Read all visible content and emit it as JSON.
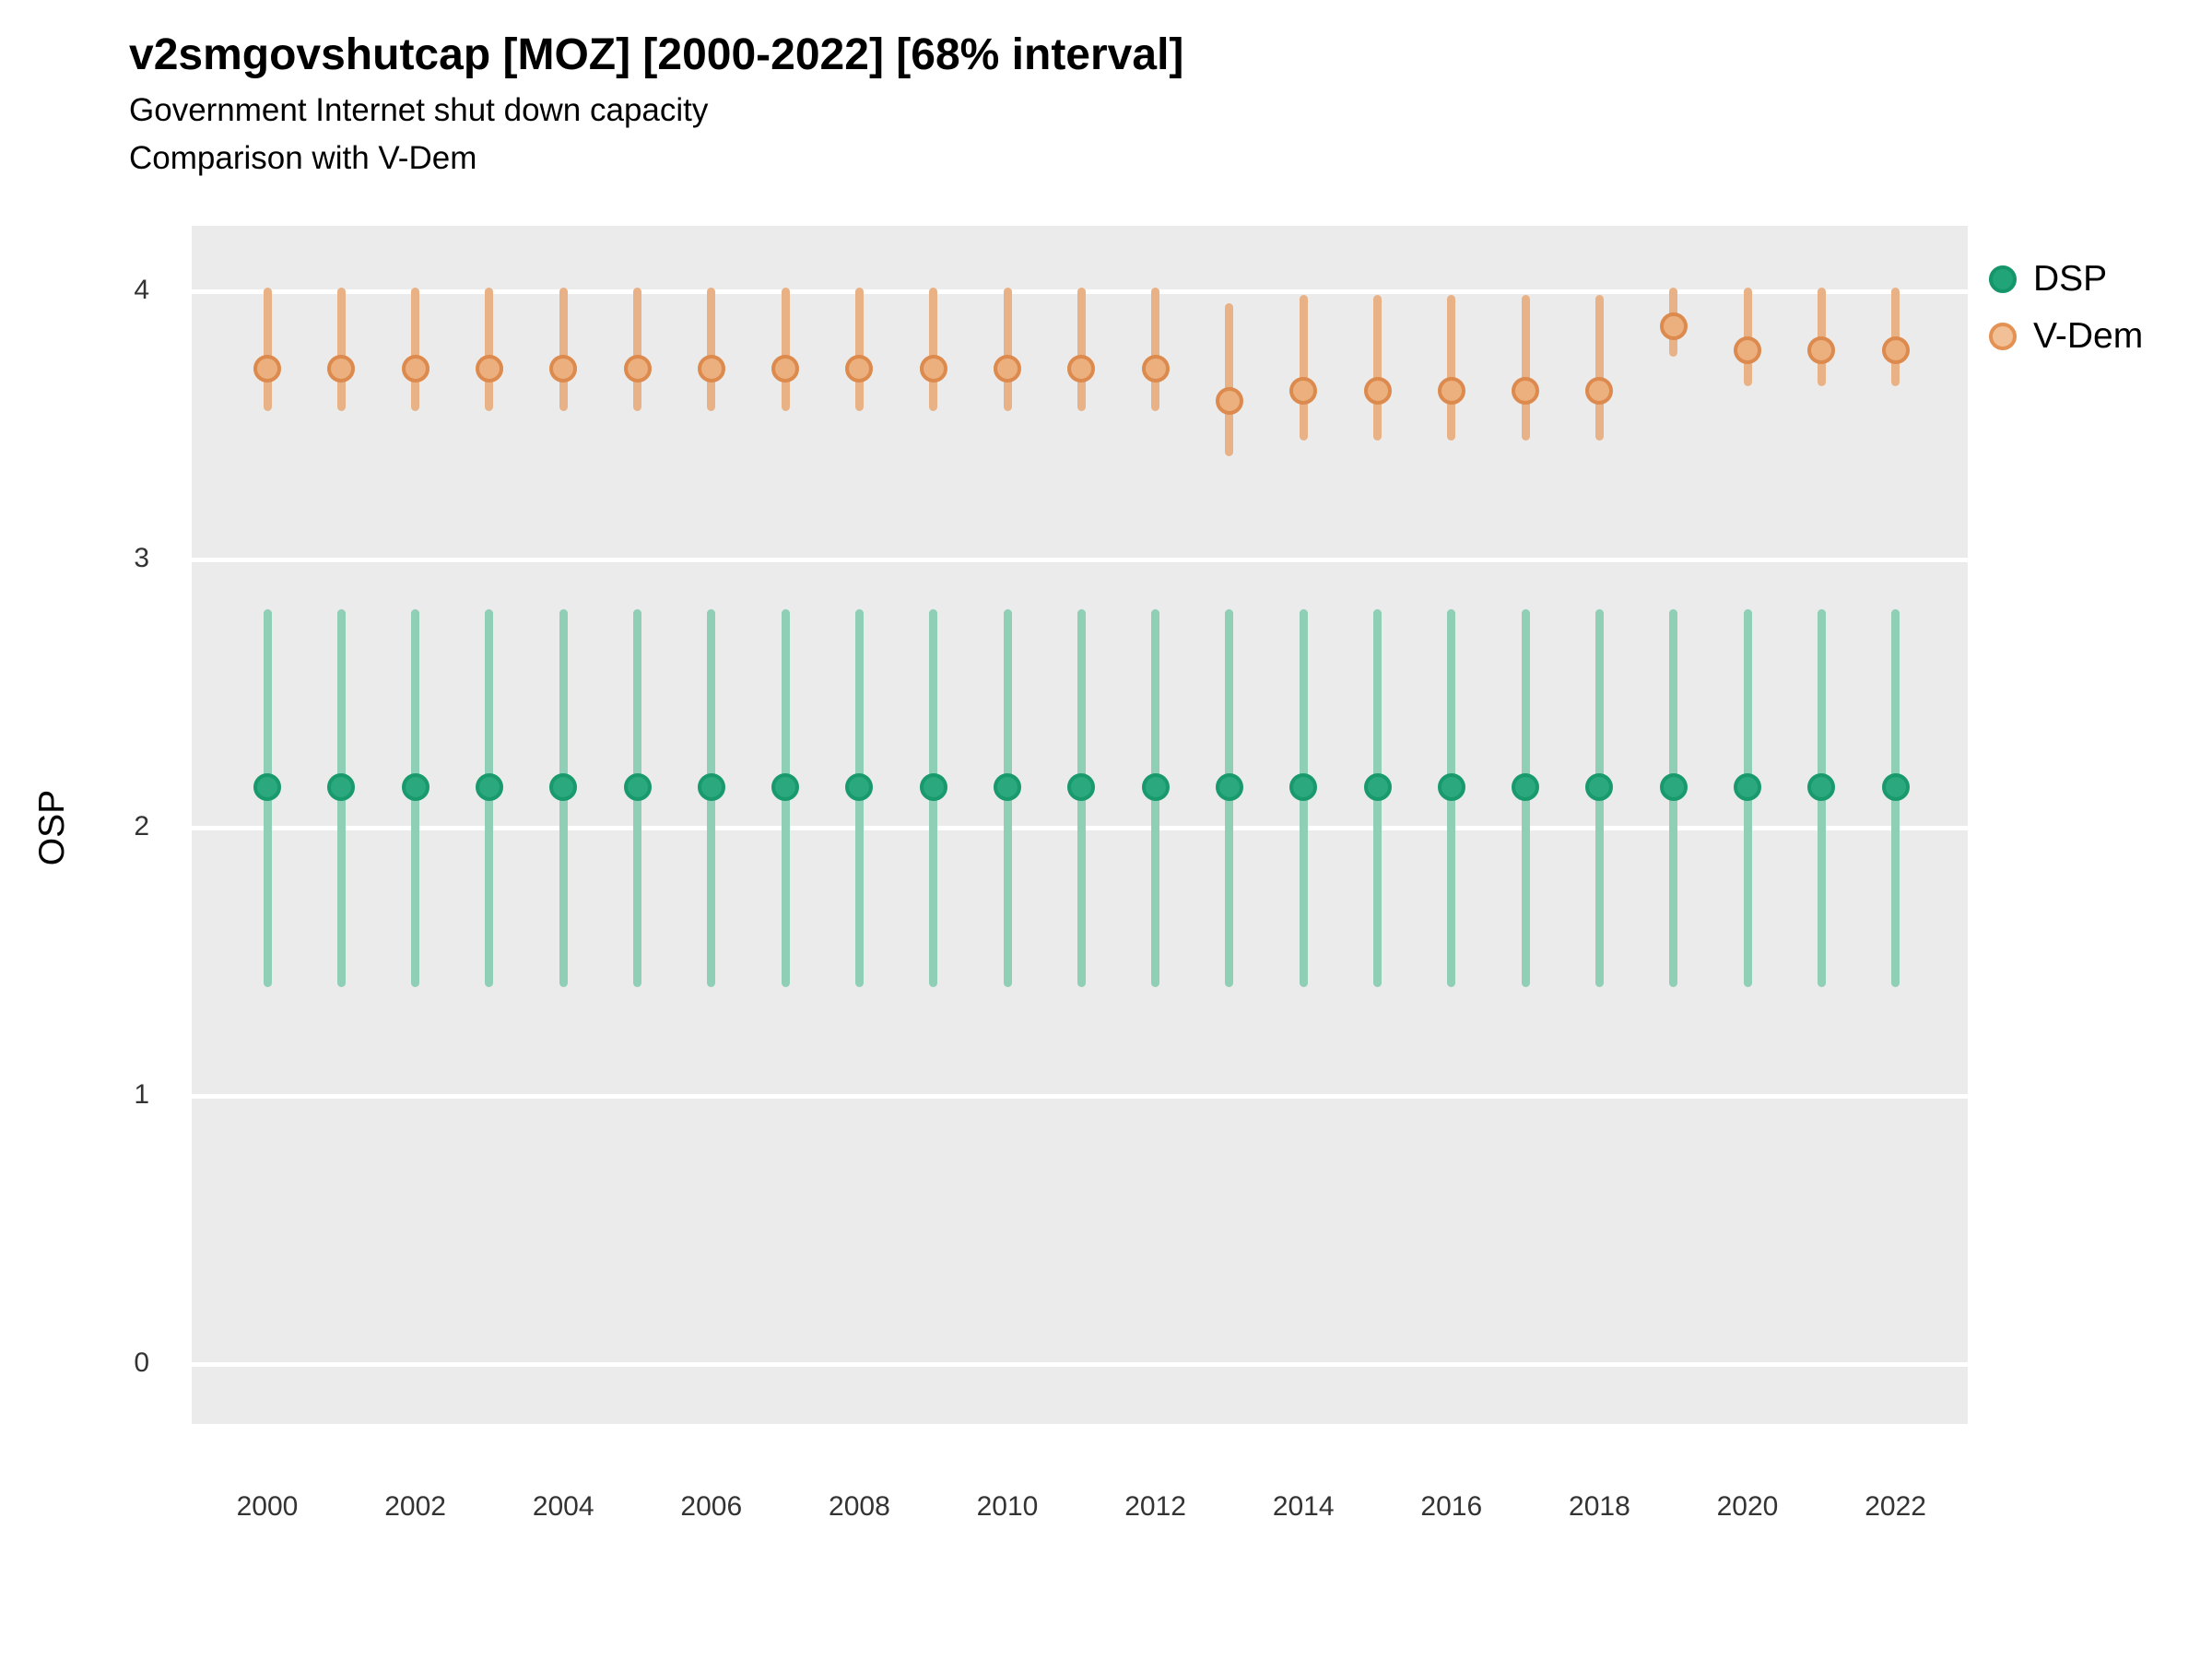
{
  "header": {
    "title": "v2smgovshutcap [MOZ] [2000-2022] [68% interval]",
    "subtitle_line1": "Government Internet shut down capacity",
    "subtitle_line2": "Comparison with V-Dem"
  },
  "axes": {
    "y_label": "OSP",
    "y_ticks": [
      4,
      3,
      2,
      1,
      0
    ],
    "x_ticks": [
      2000,
      2002,
      2004,
      2006,
      2008,
      2010,
      2012,
      2014,
      2016,
      2018,
      2020,
      2022
    ]
  },
  "legend": {
    "position": "right",
    "items": [
      {
        "label": "DSP",
        "fill": "#21a478",
        "ring": "#14966a"
      },
      {
        "label": "V-Dem",
        "fill": "#f2c096",
        "ring": "#e39254"
      }
    ]
  },
  "colors": {
    "background": "#ffffff",
    "panel_background": "#ebebeb",
    "gridline": "#ffffff",
    "text": "#000000",
    "tick_text": "#333333"
  },
  "chart_data": {
    "type": "pointrange",
    "title": "v2smgovshutcap [MOZ] [2000-2022] [68% interval]",
    "subtitle": [
      "Government Internet shut down capacity",
      "Comparison with V-Dem"
    ],
    "interval": "68%",
    "xlabel": "",
    "ylabel": "OSP",
    "ylim": [
      -0.22,
      4.24
    ],
    "yticks": [
      0,
      1,
      2,
      3,
      4
    ],
    "grid": "major-horizontal",
    "legend_position": "right",
    "x": [
      2000,
      2001,
      2002,
      2003,
      2004,
      2005,
      2006,
      2007,
      2008,
      2009,
      2010,
      2011,
      2012,
      2013,
      2014,
      2015,
      2016,
      2017,
      2018,
      2019,
      2020,
      2021,
      2022
    ],
    "series": [
      {
        "key": "dsp",
        "name": "DSP",
        "bar_color": "#8ecfb5",
        "point_fill": "#2ba87d",
        "point_ring": "#189a6d",
        "estimates": [
          2.15,
          2.15,
          2.15,
          2.15,
          2.15,
          2.15,
          2.15,
          2.15,
          2.15,
          2.15,
          2.15,
          2.15,
          2.15,
          2.15,
          2.15,
          2.15,
          2.15,
          2.15,
          2.15,
          2.15,
          2.15,
          2.15,
          2.15
        ],
        "lower": [
          1.42,
          1.42,
          1.42,
          1.42,
          1.42,
          1.42,
          1.42,
          1.42,
          1.42,
          1.42,
          1.42,
          1.42,
          1.42,
          1.42,
          1.42,
          1.42,
          1.42,
          1.42,
          1.42,
          1.42,
          1.42,
          1.42,
          1.42
        ],
        "upper": [
          2.8,
          2.8,
          2.8,
          2.8,
          2.8,
          2.8,
          2.8,
          2.8,
          2.8,
          2.8,
          2.8,
          2.8,
          2.8,
          2.8,
          2.8,
          2.8,
          2.8,
          2.8,
          2.8,
          2.8,
          2.8,
          2.8,
          2.8
        ]
      },
      {
        "key": "vdem",
        "name": "V-Dem",
        "bar_color": "#e9b286",
        "point_fill": "#ecb07e",
        "point_ring": "#dc8a4d",
        "estimates": [
          3.71,
          3.71,
          3.71,
          3.71,
          3.71,
          3.71,
          3.71,
          3.71,
          3.71,
          3.71,
          3.71,
          3.71,
          3.71,
          3.59,
          3.63,
          3.63,
          3.63,
          3.63,
          3.63,
          3.87,
          3.78,
          3.78,
          3.78
        ],
        "lower": [
          3.57,
          3.57,
          3.57,
          3.57,
          3.57,
          3.57,
          3.57,
          3.57,
          3.57,
          3.57,
          3.57,
          3.57,
          3.57,
          3.4,
          3.46,
          3.46,
          3.46,
          3.46,
          3.46,
          3.77,
          3.66,
          3.66,
          3.66
        ],
        "upper": [
          4.0,
          4.0,
          4.0,
          4.0,
          4.0,
          4.0,
          4.0,
          4.0,
          4.0,
          4.0,
          4.0,
          4.0,
          4.0,
          3.94,
          3.97,
          3.97,
          3.97,
          3.97,
          3.97,
          4.0,
          4.0,
          4.0,
          4.0
        ]
      }
    ]
  }
}
